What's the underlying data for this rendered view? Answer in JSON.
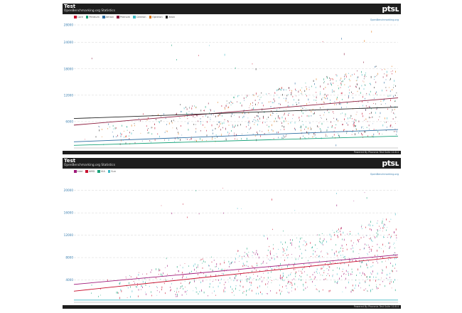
{
  "footer_text": "Powered By Phoronix Test Suite 10.8.4",
  "chart_data": [
    {
      "type": "scatter",
      "title": "Test",
      "subtitle": "OpenBenchmarking.org Statistics",
      "source_label": "OpenBenchmarking.org",
      "ylim": [
        0,
        28000
      ],
      "yticks": [
        6000,
        12000,
        18000,
        24000,
        28000
      ],
      "ytick_labels": [
        "6000",
        "12000",
        "18000",
        "24000",
        "28000"
      ],
      "legend": [
        {
          "name": "Core",
          "color": "#c8102e"
        },
        {
          "name": "Pentium",
          "color": "#1aa37a"
        },
        {
          "name": "Athlon",
          "color": "#2d6ea3"
        },
        {
          "name": "Phenom",
          "color": "#8b1a3c"
        },
        {
          "name": "Celeron",
          "color": "#3fb8c4"
        },
        {
          "name": "Opteron",
          "color": "#e07b1a"
        },
        {
          "name": "Xeon",
          "color": "#222222"
        }
      ],
      "trendlines": [
        {
          "color": "#8b1a3c",
          "y_start": 5200,
          "y_end": 11400
        },
        {
          "color": "#222222",
          "y_start": 6700,
          "y_end": 9300
        },
        {
          "color": "#2d6ea3",
          "y_start": 1400,
          "y_end": 4200
        },
        {
          "color": "#1aa37a",
          "y_start": 600,
          "y_end": 2700
        }
      ]
    },
    {
      "type": "scatter",
      "title": "Test",
      "subtitle": "OpenBenchmarking.org Statistics",
      "source_label": "OpenBenchmarking.org",
      "ylim": [
        0,
        22000
      ],
      "yticks": [
        4000,
        8000,
        12000,
        16000,
        20000
      ],
      "ytick_labels": [
        "4000",
        "8000",
        "12000",
        "16000",
        "20000"
      ],
      "legend": [
        {
          "name": "Intel",
          "color": "#a0197a"
        },
        {
          "name": "AMD",
          "color": "#c8102e"
        },
        {
          "name": "VIA",
          "color": "#1aa37a"
        },
        {
          "name": "Sun",
          "color": "#3fb8c4"
        }
      ],
      "trendlines": [
        {
          "color": "#a0197a",
          "y_start": 3200,
          "y_end": 8500
        },
        {
          "color": "#c8102e",
          "y_start": 2000,
          "y_end": 8100
        },
        {
          "color": "#3fb8c4",
          "y_start": 400,
          "y_end": 400
        }
      ]
    }
  ]
}
